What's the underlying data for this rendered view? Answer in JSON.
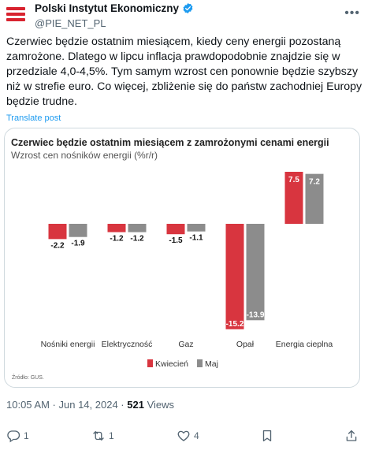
{
  "author": {
    "name": "Polski Instytut Ekonomiczny",
    "handle": "@PIE_NET_PL"
  },
  "tweet": {
    "text": "Czerwiec będzie ostatnim miesiącem, kiedy ceny energii pozostaną zamrożone. Dlatego w lipcu inflacja prawdopodobnie znajdzie się w przedziale 4,0-4,5%. Tym samym wzrost cen ponownie będzie szybszy niż w strefie euro. Co więcej, zbliżenie się do państw zachodniej Europy będzie trudne.",
    "translate_label": "Translate post"
  },
  "chart_data": {
    "type": "bar",
    "title": "Czerwiec będzie ostatnim miesiącem z zamrożonymi cenami energii",
    "subtitle": "Wzrost cen nośników energii (%r/r)",
    "categories": [
      "Nośniki energii",
      "Elektryczność",
      "Gaz",
      "Opał",
      "Energia cieplna"
    ],
    "series": [
      {
        "name": "Kwiecień",
        "color": "#d8353f",
        "values": [
          -2.2,
          -1.2,
          -1.5,
          -15.2,
          7.5
        ],
        "labels": [
          "-2.2",
          "-1.2",
          "-1.5",
          "-15.2",
          "7.5"
        ]
      },
      {
        "name": "Maj",
        "color": "#8c8c8c",
        "values": [
          -1.9,
          -1.2,
          -1.1,
          -13.9,
          7.2
        ],
        "labels": [
          "-1.9",
          "-1.2",
          "-1.1",
          "-13.9",
          "7.2"
        ]
      }
    ],
    "ylim": [
      -15.2,
      7.5
    ],
    "legend_position": "bottom",
    "grid": false,
    "source": "Źródło: GUS."
  },
  "meta": {
    "time": "10:05 AM",
    "separator": " · ",
    "date": "Jun 14, 2024",
    "views_count": "521",
    "views_label": " Views"
  },
  "actions": {
    "replies": "1",
    "reposts": "1",
    "likes": "4"
  },
  "colors": {
    "link": "#1d9bf0",
    "brand": "#d8232f"
  }
}
